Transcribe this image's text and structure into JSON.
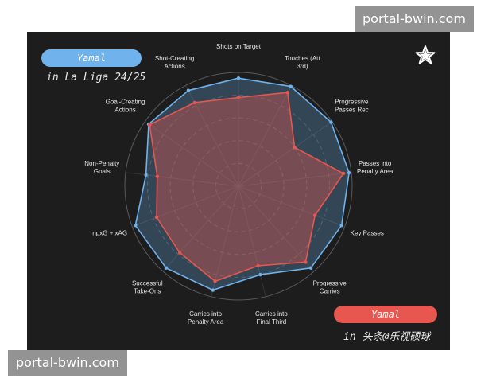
{
  "watermark_top": "portal-bwin.com",
  "watermark_bottom": "portal-bwin.com",
  "legend": {
    "blue_name": "Yamal",
    "blue_subtitle": "in La Liga 24/25",
    "red_name": "Yamal",
    "red_subtitle": "in 头条@乐视硕球"
  },
  "colors": {
    "blue": "#6fb2ec",
    "red": "#e8574f",
    "background": "#1d1d1d"
  },
  "logo_icon": "star-icon",
  "chart_data": {
    "type": "radar",
    "title": "",
    "categories": [
      "Shots on Target",
      "Touches (Att 3rd)",
      "Progressive Passes Rec",
      "Passes into Penalty Area",
      "Key Passes",
      "Progressive Carries",
      "Carries into Final Third",
      "Carries into Penalty Area",
      "Successful Take-Ons",
      "npxG + xAG",
      "Non-Penalty Goals",
      "Goal-Creating Actions",
      "Shot-Creating Actions"
    ],
    "rlim": [
      0,
      1
    ],
    "grid": true,
    "series": [
      {
        "name": "Yamal",
        "color": "#6fb2ec",
        "values": [
          0.95,
          0.99,
          0.99,
          0.98,
          0.97,
          0.96,
          0.8,
          0.94,
          0.96,
          0.97,
          0.82,
          0.96,
          0.95
        ]
      },
      {
        "name": "Yamal",
        "color": "#e8574f",
        "values": [
          0.78,
          0.93,
          0.6,
          0.93,
          0.72,
          0.89,
          0.72,
          0.86,
          0.78,
          0.77,
          0.72,
          0.95,
          0.83
        ]
      }
    ]
  }
}
